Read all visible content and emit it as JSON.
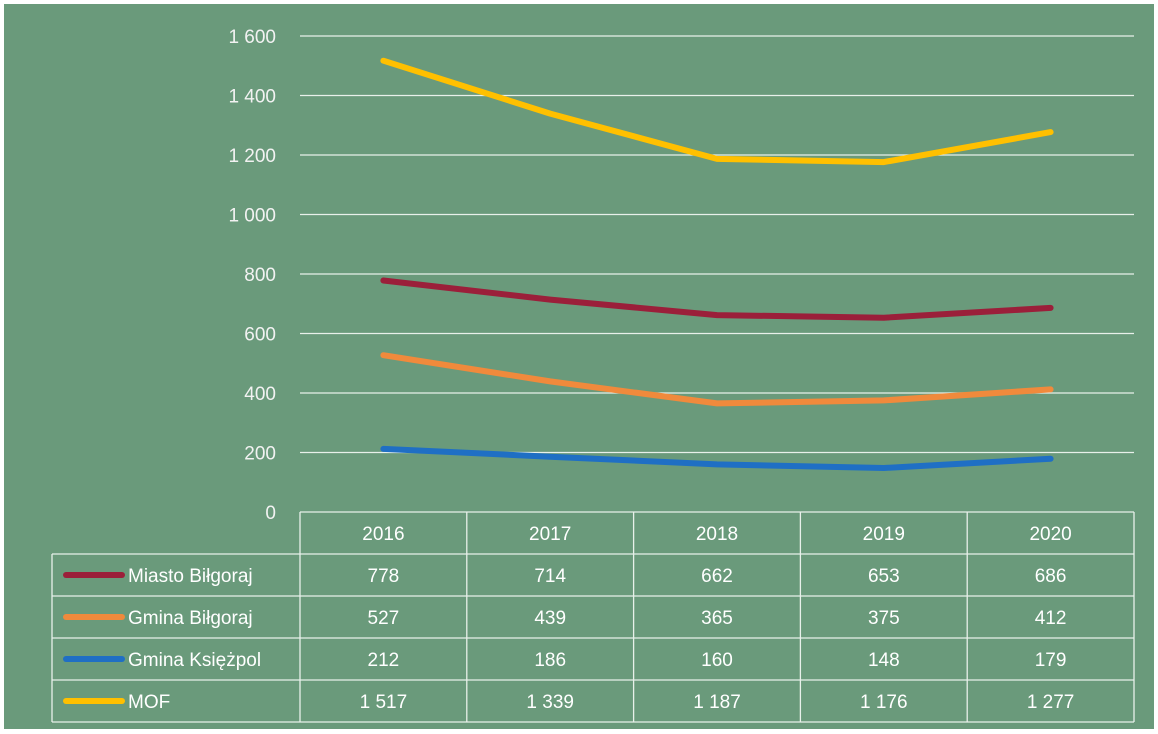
{
  "colors": {
    "background": "#6a9a7b",
    "grid": "#e8f0ea",
    "text": "#ffffff",
    "axis_text": "#f2f2f2"
  },
  "chart_data": {
    "type": "line",
    "categories": [
      "2016",
      "2017",
      "2018",
      "2019",
      "2020"
    ],
    "ylim": [
      0,
      1600
    ],
    "yticks": [
      0,
      200,
      400,
      600,
      800,
      1000,
      1200,
      1400,
      1600
    ],
    "ytick_labels": [
      "0",
      "200",
      "400",
      "600",
      "800",
      "1 000",
      "1 200",
      "1 400",
      "1 600"
    ],
    "grid": true,
    "legend": "data-table",
    "series": [
      {
        "name": "Miasto Biłgoraj",
        "color": "#9b1f3a",
        "values": [
          778,
          714,
          662,
          653,
          686
        ],
        "labels": [
          "778",
          "714",
          "662",
          "653",
          "686"
        ]
      },
      {
        "name": "Gmina Biłgoraj",
        "color": "#f08a3c",
        "values": [
          527,
          439,
          365,
          375,
          412
        ],
        "labels": [
          "527",
          "439",
          "365",
          "375",
          "412"
        ]
      },
      {
        "name": "Gmina Księżpol",
        "color": "#1f6fc4",
        "values": [
          212,
          186,
          160,
          148,
          179
        ],
        "labels": [
          "212",
          "186",
          "160",
          "148",
          "179"
        ]
      },
      {
        "name": "MOF",
        "color": "#ffc000",
        "values": [
          1517,
          1339,
          1187,
          1176,
          1277
        ],
        "labels": [
          "1 517",
          "1 339",
          "1 187",
          "1 176",
          "1 277"
        ]
      }
    ]
  }
}
